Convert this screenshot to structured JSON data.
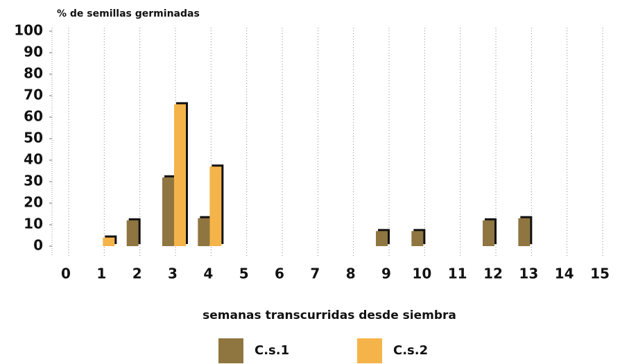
{
  "chart_data": {
    "type": "bar",
    "title": "% de semillas germinadas",
    "x_label": "semanas transcurridas desde siembra",
    "categories": [
      "0",
      "1",
      "2",
      "3",
      "4",
      "5",
      "6",
      "7",
      "8",
      "9",
      "10",
      "11",
      "12",
      "13",
      "14",
      "15"
    ],
    "series": [
      {
        "name": "C.s.1",
        "color": "#8f7540",
        "values": [
          null,
          null,
          12,
          32,
          13,
          null,
          null,
          null,
          null,
          7,
          7,
          null,
          12,
          13,
          null,
          null
        ]
      },
      {
        "name": "C.s.2",
        "color": "#f5b44a",
        "values": [
          null,
          4,
          null,
          66,
          37,
          null,
          null,
          null,
          null,
          null,
          null,
          null,
          null,
          null,
          null,
          null
        ]
      }
    ],
    "ylim": [
      0,
      100
    ],
    "yticks": [
      0,
      10,
      20,
      30,
      40,
      50,
      60,
      70,
      80,
      90,
      100
    ],
    "grid": true
  }
}
